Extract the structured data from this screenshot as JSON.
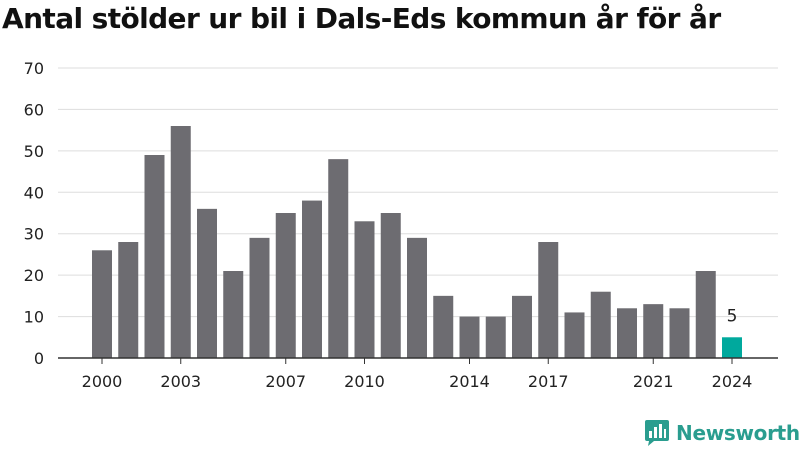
{
  "title": "Antal stölder ur bil i Dals-Eds kommun år för år",
  "brand": {
    "name": "Newsworthy",
    "color": "#2a9d8f",
    "icon": "newsworthy-bar-chart-icon"
  },
  "colors": {
    "bar": "#6d6c71",
    "highlight": "#00a99d",
    "grid": "#dddddd",
    "axis": "#333333",
    "text": "#222222"
  },
  "chart_data": {
    "type": "bar",
    "categories": [
      "2000",
      "2001",
      "2002",
      "2003",
      "2004",
      "2005",
      "2006",
      "2007",
      "2008",
      "2009",
      "2010",
      "2011",
      "2012",
      "2013",
      "2014",
      "2015",
      "2016",
      "2017",
      "2018",
      "2019",
      "2020",
      "2021",
      "2022",
      "2023",
      "2024"
    ],
    "values": [
      26,
      28,
      49,
      56,
      36,
      21,
      29,
      35,
      38,
      48,
      33,
      35,
      29,
      15,
      10,
      10,
      15,
      28,
      11,
      16,
      12,
      13,
      12,
      21,
      5
    ],
    "x_tick_labels": [
      "2000",
      "2003",
      "2007",
      "2010",
      "2014",
      "2017",
      "2021",
      "2024"
    ],
    "y_ticks": [
      0,
      10,
      20,
      30,
      40,
      50,
      60,
      70
    ],
    "ylim": [
      0,
      70
    ],
    "highlight": {
      "category": "2024",
      "label": "5"
    },
    "xlabel": "",
    "ylabel": "",
    "grid": true,
    "legend": "none"
  }
}
